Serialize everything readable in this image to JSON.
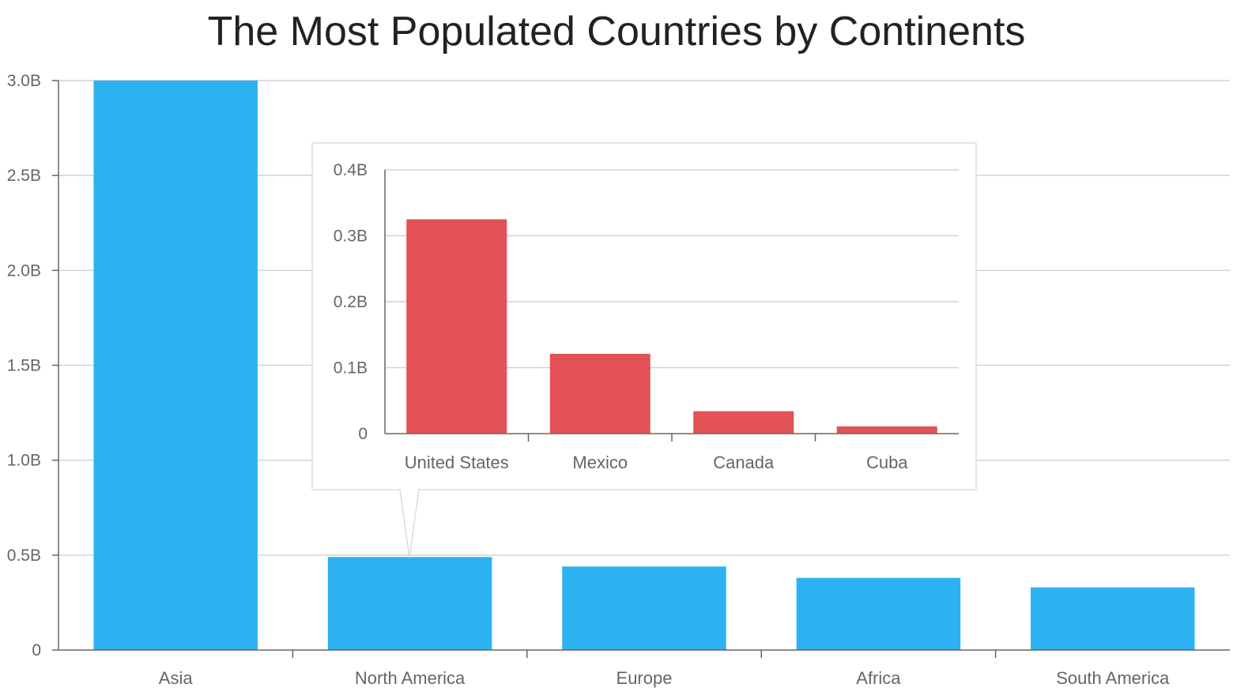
{
  "chart_data": [
    {
      "type": "bar",
      "title": "The Most Populated Countries by Continents",
      "xlabel": "",
      "ylabel": "",
      "categories": [
        "Asia",
        "North America",
        "Europe",
        "Africa",
        "South America"
      ],
      "values": [
        3.0,
        0.49,
        0.44,
        0.38,
        0.33
      ],
      "value_unit": "billions",
      "ylim": [
        0,
        3.0
      ],
      "y_ticks": [
        "0",
        "0.5B",
        "1.0B",
        "1.5B",
        "2.0B",
        "2.5B",
        "3.0B"
      ],
      "y_tick_values": [
        0,
        0.5,
        1.0,
        1.5,
        2.0,
        2.5,
        3.0
      ],
      "grid": true,
      "legend": "none",
      "bar_color": "#2cb2f0"
    },
    {
      "type": "bar",
      "context": "tooltip drill-down for North America",
      "title": "",
      "xlabel": "",
      "ylabel": "",
      "categories": [
        "United States",
        "Mexico",
        "Canada",
        "Cuba"
      ],
      "values": [
        0.325,
        0.121,
        0.034,
        0.011
      ],
      "value_unit": "billions",
      "ylim": [
        0,
        0.4
      ],
      "y_ticks": [
        "0",
        "0.1B",
        "0.2B",
        "0.3B",
        "0.4B"
      ],
      "y_tick_values": [
        0,
        0.1,
        0.2,
        0.3,
        0.4
      ],
      "grid": true,
      "legend": "none",
      "bar_color": "#e25256"
    }
  ]
}
